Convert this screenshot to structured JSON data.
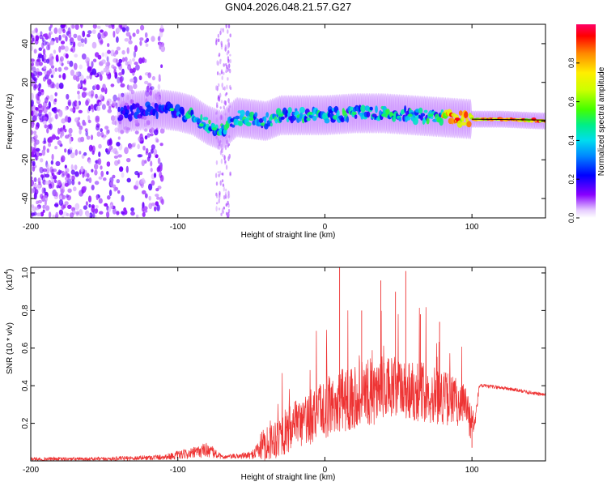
{
  "figure": {
    "title": "GN04.2026.048.21.57.G27"
  },
  "chart_data": [
    {
      "type": "heatmap",
      "name": "spectrogram",
      "xlabel": "Height of straight line (km)",
      "ylabel": "Frequency (Hz)",
      "xlim": [
        -200,
        150
      ],
      "ylim": [
        -50,
        50
      ],
      "xticks": [
        -200,
        -100,
        0,
        100
      ],
      "yticks": [
        -40,
        -20,
        0,
        20,
        40
      ],
      "ridge": {
        "x": [
          -140,
          -120,
          -110,
          -100,
          -90,
          -80,
          -70,
          -60,
          -50,
          -40,
          -30,
          -20,
          -10,
          0,
          20,
          40,
          60,
          80,
          100,
          120,
          150
        ],
        "y": [
          4,
          6,
          6,
          5,
          3,
          -2,
          -5,
          2,
          1,
          0,
          3,
          3,
          3,
          3,
          4,
          4,
          3,
          2,
          1,
          1,
          0
        ]
      },
      "colorbar": {
        "label": "Normalized spectral amplitude",
        "range": [
          0,
          1
        ],
        "ticks": [
          0.0,
          0.2,
          0.4,
          0.6,
          0.8
        ]
      }
    },
    {
      "type": "line",
      "name": "snr",
      "xlabel": "Height of straight line (km)",
      "ylabel": "SNR (10 * v/v)",
      "yscale_label": "(x10",
      "yscale_exp": "4",
      "xlim": [
        -200,
        150
      ],
      "ylim": [
        0,
        1.03
      ],
      "xticks": [
        -200,
        -100,
        0,
        100
      ],
      "yticks": [
        0.2,
        0.4,
        0.6,
        0.8,
        1.0
      ],
      "color": "#ee3333",
      "envelope": {
        "x": [
          -200,
          -150,
          -110,
          -90,
          -80,
          -75,
          -70,
          -50,
          -40,
          -20,
          0,
          20,
          40,
          60,
          80,
          95,
          100,
          102,
          105,
          120,
          150
        ],
        "mean": [
          0.01,
          0.01,
          0.02,
          0.04,
          0.06,
          0.04,
          0.02,
          0.03,
          0.1,
          0.18,
          0.28,
          0.35,
          0.38,
          0.38,
          0.34,
          0.3,
          0.2,
          0.2,
          0.4,
          0.39,
          0.35
        ],
        "spread": [
          0.01,
          0.01,
          0.015,
          0.03,
          0.04,
          0.03,
          0.01,
          0.02,
          0.1,
          0.14,
          0.16,
          0.18,
          0.18,
          0.17,
          0.15,
          0.12,
          0.1,
          0.05,
          0.01,
          0.01,
          0.01
        ]
      },
      "peaks": [
        {
          "x": 10,
          "y": 1.03
        },
        {
          "x": 38,
          "y": 0.96
        },
        {
          "x": 55,
          "y": 1.01
        },
        {
          "x": 48,
          "y": 0.9
        },
        {
          "x": 25,
          "y": 0.8
        },
        {
          "x": 65,
          "y": 0.78
        },
        {
          "x": 78,
          "y": 0.74
        },
        {
          "x": 100,
          "y": 0.07
        }
      ]
    }
  ]
}
